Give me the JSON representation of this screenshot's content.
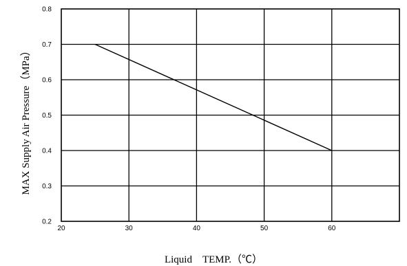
{
  "chart_data": {
    "type": "line",
    "title": "",
    "xlabel": "Liquid　TEMP.（℃）",
    "ylabel": "MAX Supply Air Pressure（MPa）",
    "xlim": [
      20,
      70
    ],
    "ylim": [
      0.2,
      0.8
    ],
    "x_ticks": [
      "20",
      "30",
      "40",
      "50",
      "60"
    ],
    "y_ticks": [
      "0.2",
      "0.3",
      "0.4",
      "0.5",
      "0.6",
      "0.7",
      "0.8"
    ],
    "grid": true,
    "legend": "none",
    "series": [
      {
        "x": [
          25,
          60
        ],
        "y": [
          0.7,
          0.4
        ]
      }
    ]
  }
}
